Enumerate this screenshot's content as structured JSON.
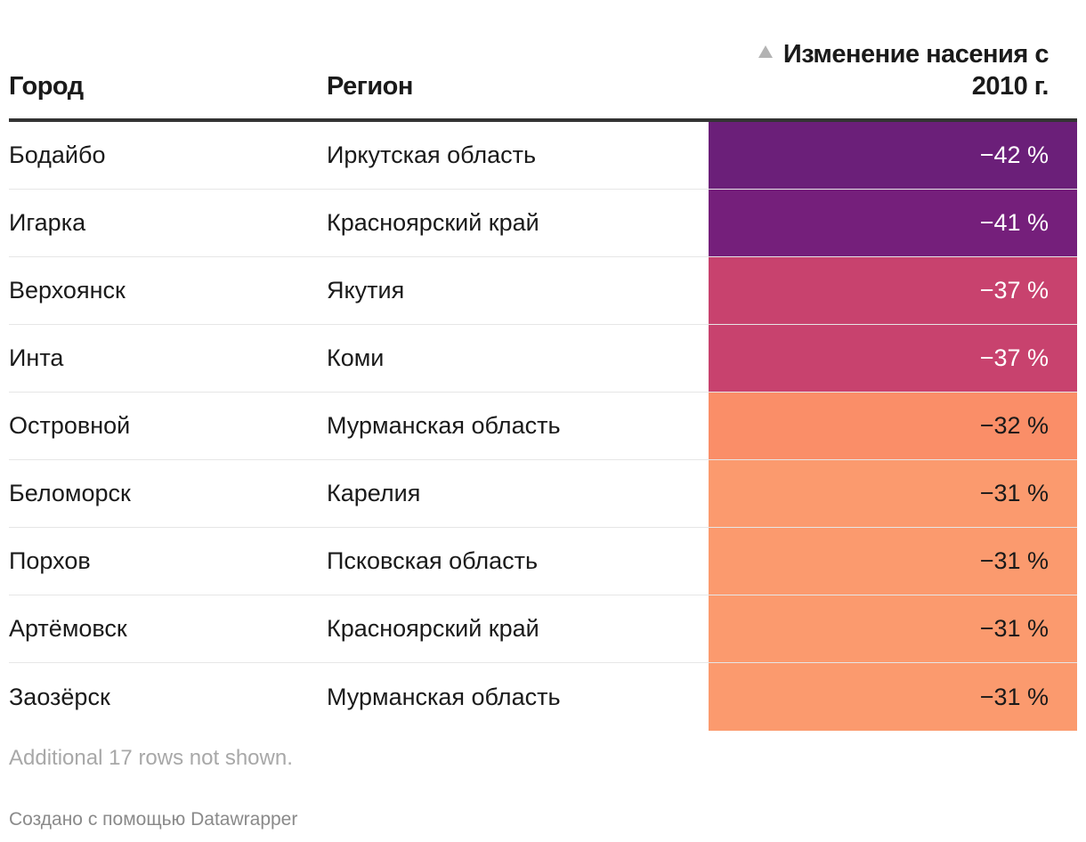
{
  "chart_data": {
    "type": "table",
    "columns": {
      "city": "Город",
      "region": "Регион",
      "change": "Изменение насения с 2010 г."
    },
    "change_lines": [
      "Изменение насения с",
      "2010 г."
    ],
    "sort_indicator": "ascending",
    "rows": [
      {
        "city": "Бодайбо",
        "region": "Иркутская область",
        "change": -42,
        "label": "−42 %",
        "bg": "#6b1f79",
        "fg": "#ffffff"
      },
      {
        "city": "Игарка",
        "region": "Красноярский край",
        "change": -41,
        "label": "−41 %",
        "bg": "#751f7b",
        "fg": "#ffffff"
      },
      {
        "city": "Верхоянск",
        "region": "Якутия",
        "change": -37,
        "label": "−37 %",
        "bg": "#c8426e",
        "fg": "#ffffff"
      },
      {
        "city": "Инта",
        "region": "Коми",
        "change": -37,
        "label": "−37 %",
        "bg": "#c8426e",
        "fg": "#ffffff"
      },
      {
        "city": "Островной",
        "region": "Мурманская область",
        "change": -32,
        "label": "−32 %",
        "bg": "#fa8e68",
        "fg": "#1a1a1a"
      },
      {
        "city": "Беломорск",
        "region": "Карелия",
        "change": -31,
        "label": "−31 %",
        "bg": "#fb9a6e",
        "fg": "#1a1a1a"
      },
      {
        "city": "Порхов",
        "region": "Псковская область",
        "change": -31,
        "label": "−31 %",
        "bg": "#fb9a6e",
        "fg": "#1a1a1a"
      },
      {
        "city": "Артёмовск",
        "region": "Красноярский край",
        "change": -31,
        "label": "−31 %",
        "bg": "#fb9a6e",
        "fg": "#1a1a1a"
      },
      {
        "city": "Заозёрск",
        "region": "Мурманская область",
        "change": -31,
        "label": "−31 %",
        "bg": "#fb9a6e",
        "fg": "#1a1a1a"
      }
    ]
  },
  "footer": {
    "note": "Additional 17 rows not shown.",
    "credit": "Создано с помощью Datawrapper"
  }
}
